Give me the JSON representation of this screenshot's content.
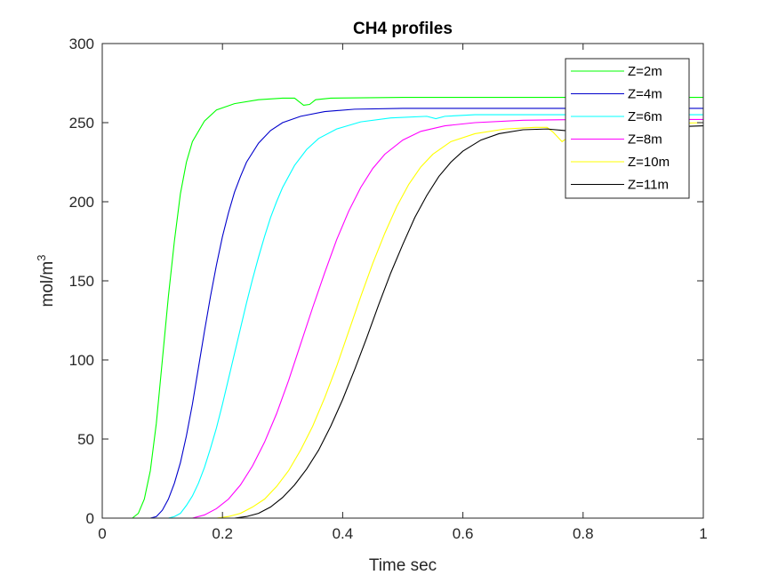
{
  "chart_data": {
    "type": "line",
    "title": "CH4 profiles",
    "xlabel": "Time sec",
    "ylabel_base": "mol/m",
    "ylabel_sup": "3",
    "xlim": [
      0,
      1
    ],
    "ylim": [
      0,
      300
    ],
    "xticks": [
      "0",
      "0.2",
      "0.4",
      "0.6",
      "0.8",
      "1"
    ],
    "yticks": [
      "0",
      "50",
      "100",
      "150",
      "200",
      "250",
      "300"
    ],
    "grid": false,
    "legend_position": "top-right",
    "series": [
      {
        "name": "Z=2m",
        "color": "#00ff00",
        "points": [
          [
            0,
            0
          ],
          [
            0.05,
            0
          ],
          [
            0.06,
            3
          ],
          [
            0.07,
            12
          ],
          [
            0.08,
            30
          ],
          [
            0.09,
            60
          ],
          [
            0.1,
            100
          ],
          [
            0.11,
            140
          ],
          [
            0.12,
            175
          ],
          [
            0.13,
            205
          ],
          [
            0.14,
            225
          ],
          [
            0.15,
            238
          ],
          [
            0.17,
            251
          ],
          [
            0.19,
            258
          ],
          [
            0.22,
            262
          ],
          [
            0.26,
            264.5
          ],
          [
            0.3,
            265.5
          ],
          [
            0.32,
            265.5
          ],
          [
            0.335,
            261
          ],
          [
            0.345,
            261.5
          ],
          [
            0.355,
            264.5
          ],
          [
            0.38,
            265.5
          ],
          [
            0.5,
            266
          ],
          [
            1.0,
            266
          ]
        ]
      },
      {
        "name": "Z=4m",
        "color": "#0000cc",
        "points": [
          [
            0,
            0
          ],
          [
            0.08,
            0
          ],
          [
            0.09,
            1
          ],
          [
            0.1,
            5
          ],
          [
            0.11,
            12
          ],
          [
            0.12,
            22
          ],
          [
            0.13,
            35
          ],
          [
            0.14,
            52
          ],
          [
            0.15,
            72
          ],
          [
            0.16,
            95
          ],
          [
            0.17,
            118
          ],
          [
            0.18,
            140
          ],
          [
            0.19,
            160
          ],
          [
            0.2,
            178
          ],
          [
            0.21,
            193
          ],
          [
            0.22,
            206
          ],
          [
            0.23,
            216
          ],
          [
            0.24,
            225
          ],
          [
            0.26,
            237
          ],
          [
            0.28,
            245
          ],
          [
            0.3,
            250
          ],
          [
            0.33,
            254
          ],
          [
            0.37,
            257
          ],
          [
            0.42,
            258.5
          ],
          [
            0.5,
            259
          ],
          [
            1.0,
            259
          ]
        ]
      },
      {
        "name": "Z=6m",
        "color": "#00ffff",
        "points": [
          [
            0,
            0
          ],
          [
            0.11,
            0
          ],
          [
            0.12,
            1
          ],
          [
            0.13,
            3
          ],
          [
            0.14,
            8
          ],
          [
            0.15,
            14
          ],
          [
            0.16,
            22
          ],
          [
            0.17,
            32
          ],
          [
            0.18,
            44
          ],
          [
            0.19,
            57
          ],
          [
            0.2,
            72
          ],
          [
            0.21,
            88
          ],
          [
            0.22,
            104
          ],
          [
            0.23,
            120
          ],
          [
            0.24,
            136
          ],
          [
            0.25,
            151
          ],
          [
            0.26,
            165
          ],
          [
            0.27,
            178
          ],
          [
            0.28,
            190
          ],
          [
            0.29,
            200
          ],
          [
            0.3,
            209
          ],
          [
            0.32,
            223
          ],
          [
            0.34,
            233
          ],
          [
            0.36,
            240
          ],
          [
            0.39,
            246
          ],
          [
            0.43,
            250.5
          ],
          [
            0.48,
            253
          ],
          [
            0.54,
            254
          ],
          [
            0.555,
            252.5
          ],
          [
            0.57,
            254
          ],
          [
            0.62,
            255
          ],
          [
            1.0,
            255
          ]
        ]
      },
      {
        "name": "Z=8m",
        "color": "#ff00ff",
        "points": [
          [
            0,
            0
          ],
          [
            0.15,
            0
          ],
          [
            0.17,
            2
          ],
          [
            0.19,
            6
          ],
          [
            0.21,
            12
          ],
          [
            0.23,
            21
          ],
          [
            0.25,
            33
          ],
          [
            0.27,
            48
          ],
          [
            0.29,
            66
          ],
          [
            0.31,
            87
          ],
          [
            0.33,
            110
          ],
          [
            0.35,
            133
          ],
          [
            0.37,
            155
          ],
          [
            0.39,
            176
          ],
          [
            0.41,
            194
          ],
          [
            0.43,
            209
          ],
          [
            0.45,
            221
          ],
          [
            0.47,
            230
          ],
          [
            0.5,
            239
          ],
          [
            0.53,
            244.5
          ],
          [
            0.57,
            248
          ],
          [
            0.62,
            250
          ],
          [
            0.7,
            251.5
          ],
          [
            0.8,
            252
          ],
          [
            1.0,
            252
          ]
        ]
      },
      {
        "name": "Z=10m",
        "color": "#ffff00",
        "points": [
          [
            0,
            0
          ],
          [
            0.19,
            0
          ],
          [
            0.21,
            1
          ],
          [
            0.23,
            3
          ],
          [
            0.25,
            7
          ],
          [
            0.27,
            12
          ],
          [
            0.29,
            20
          ],
          [
            0.31,
            30
          ],
          [
            0.33,
            43
          ],
          [
            0.35,
            58
          ],
          [
            0.37,
            76
          ],
          [
            0.39,
            96
          ],
          [
            0.41,
            118
          ],
          [
            0.43,
            140
          ],
          [
            0.45,
            161
          ],
          [
            0.47,
            180
          ],
          [
            0.49,
            197
          ],
          [
            0.51,
            211
          ],
          [
            0.53,
            222
          ],
          [
            0.55,
            230
          ],
          [
            0.58,
            238
          ],
          [
            0.62,
            243
          ],
          [
            0.67,
            246
          ],
          [
            0.72,
            247
          ],
          [
            0.74,
            247
          ],
          [
            0.75,
            244
          ],
          [
            0.765,
            238
          ],
          [
            0.78,
            242
          ],
          [
            0.82,
            245
          ],
          [
            0.9,
            249
          ],
          [
            1.0,
            250
          ]
        ]
      },
      {
        "name": "Z=11m",
        "color": "#000000",
        "points": [
          [
            0,
            0
          ],
          [
            0.22,
            0
          ],
          [
            0.24,
            1
          ],
          [
            0.26,
            3
          ],
          [
            0.28,
            7
          ],
          [
            0.3,
            13
          ],
          [
            0.32,
            21
          ],
          [
            0.34,
            31
          ],
          [
            0.36,
            43
          ],
          [
            0.38,
            58
          ],
          [
            0.4,
            75
          ],
          [
            0.42,
            94
          ],
          [
            0.44,
            114
          ],
          [
            0.46,
            135
          ],
          [
            0.48,
            155
          ],
          [
            0.5,
            173
          ],
          [
            0.52,
            190
          ],
          [
            0.54,
            204
          ],
          [
            0.56,
            216
          ],
          [
            0.58,
            225
          ],
          [
            0.6,
            232
          ],
          [
            0.63,
            239
          ],
          [
            0.66,
            243
          ],
          [
            0.7,
            245.5
          ],
          [
            0.74,
            246
          ],
          [
            0.77,
            245
          ],
          [
            0.8,
            243
          ],
          [
            0.86,
            245
          ],
          [
            0.92,
            247
          ],
          [
            1.0,
            248
          ]
        ]
      }
    ]
  }
}
